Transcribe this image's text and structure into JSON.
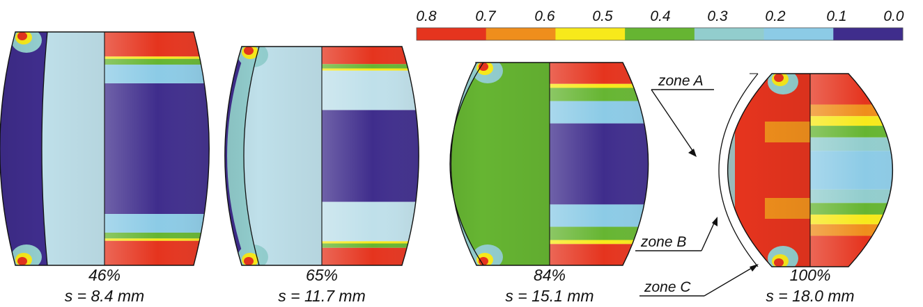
{
  "palette": {
    "red": "#e5341e",
    "orange": "#ef8e1c",
    "yellow": "#f7e91b",
    "green": "#66b532",
    "teal": "#92cdcd",
    "lightblue": "#8ccbe6",
    "navy": "#3f2d8c",
    "paleblue": "#bfe0ea",
    "outline": "#111111"
  },
  "colorbar": {
    "ticks": [
      "0.8",
      "0.7",
      "0.6",
      "0.5",
      "0.4",
      "0.3",
      "0.2",
      "0.1",
      "0.0"
    ],
    "segments": [
      "red",
      "orange",
      "yellow",
      "green",
      "teal",
      "lightblue",
      "navy"
    ]
  },
  "specimens": [
    {
      "percent": "46%",
      "stroke": "s = 8.4 mm"
    },
    {
      "percent": "65%",
      "stroke": "s = 11.7 mm"
    },
    {
      "percent": "84%",
      "stroke": "s = 15.1 mm"
    },
    {
      "percent": "100%",
      "stroke": "s = 18.0 mm"
    }
  ],
  "zones": {
    "a": "zone A",
    "b": "zone B",
    "c": "zone C"
  }
}
